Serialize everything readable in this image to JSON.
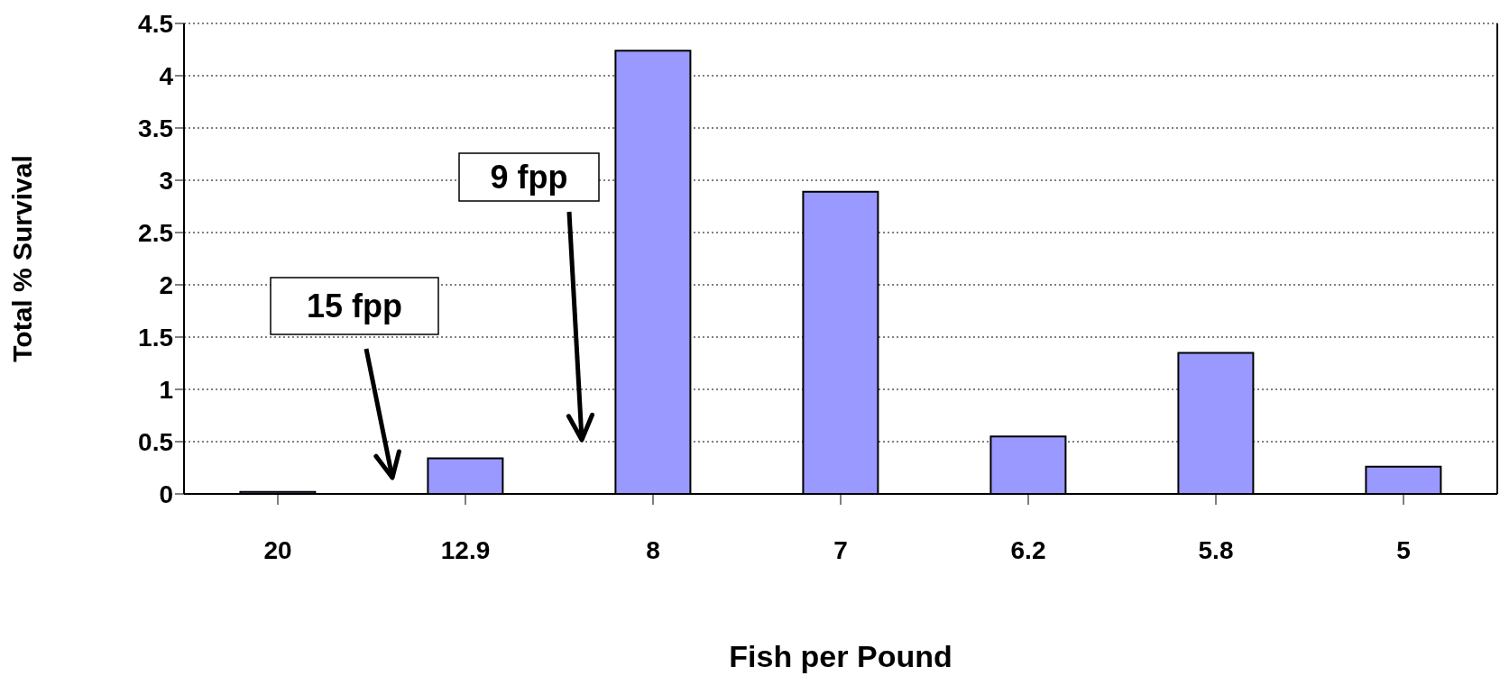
{
  "chart_data": {
    "type": "bar",
    "xlabel": "Fish per Pound",
    "ylabel": "Total % Survival",
    "categories": [
      "20",
      "12.9",
      "8",
      "7",
      "6.2",
      "5.8",
      "5"
    ],
    "values": [
      0.02,
      0.34,
      4.24,
      2.89,
      0.55,
      1.35,
      0.26
    ],
    "color": "#9999ff",
    "ylim": [
      0,
      4.5
    ],
    "yticks": [
      0,
      0.5,
      1,
      1.5,
      2,
      2.5,
      3,
      3.5,
      4,
      4.5
    ],
    "grid": "y",
    "annotations": [
      "15 fpp",
      "9 fpp"
    ]
  }
}
